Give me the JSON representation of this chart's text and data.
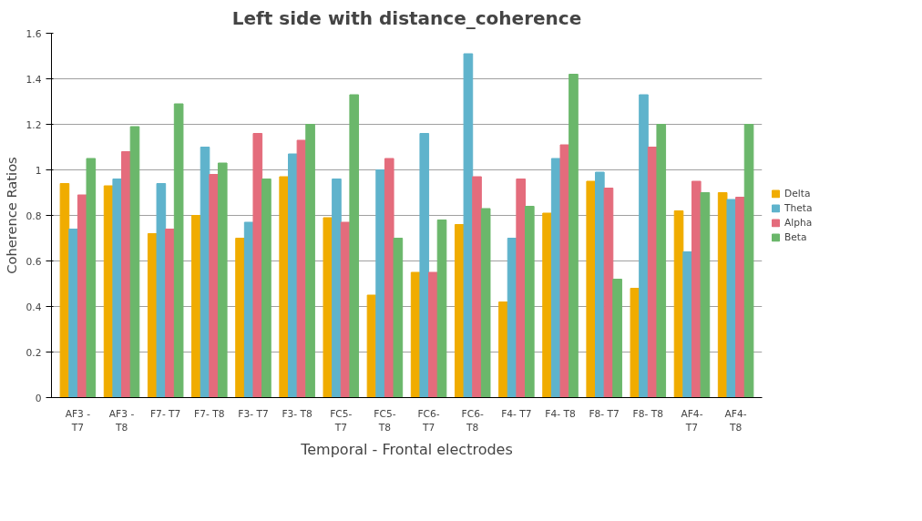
{
  "chart_data": {
    "type": "bar",
    "title": "Left side with distance_coherence",
    "xlabel": "Temporal - Frontal electrodes",
    "ylabel": "Coherence Ratios",
    "categories": [
      "AF3 -\nT7",
      "AF3 -\nT8",
      "F7- T7",
      "F7- T8",
      "F3- T7",
      "F3- T8",
      "FC5-\nT7",
      "FC5-\nT8",
      "FC6-\nT7",
      "FC6-\nT8",
      "F4- T7",
      "F4- T8",
      "F8- T7",
      "F8- T8",
      "AF4-\nT7",
      "AF4-\nT8"
    ],
    "series": [
      {
        "name": "Delta",
        "color": "#f0ac00",
        "values": [
          0.94,
          0.93,
          0.72,
          0.8,
          0.7,
          0.97,
          0.79,
          0.45,
          0.55,
          0.76,
          0.42,
          0.81,
          0.95,
          0.48,
          0.82,
          0.9
        ]
      },
      {
        "name": "Theta",
        "color": "#5fb3cc",
        "values": [
          0.74,
          0.96,
          0.94,
          1.1,
          0.77,
          1.07,
          0.96,
          1.0,
          1.16,
          1.51,
          0.7,
          1.05,
          0.99,
          1.33,
          0.64,
          0.87
        ]
      },
      {
        "name": "Alpha",
        "color": "#e46c7c",
        "values": [
          0.89,
          1.08,
          0.74,
          0.98,
          1.16,
          1.13,
          0.77,
          1.05,
          0.55,
          0.97,
          0.96,
          1.11,
          0.92,
          1.1,
          0.95,
          0.88
        ]
      },
      {
        "name": "Beta",
        "color": "#6bb76b",
        "values": [
          1.05,
          1.19,
          1.29,
          1.03,
          0.96,
          1.2,
          1.33,
          0.7,
          0.78,
          0.83,
          0.84,
          1.42,
          0.52,
          1.2,
          0.9,
          1.2
        ]
      }
    ],
    "ylim": [
      0,
      1.6
    ],
    "yticks": [
      0,
      0.2,
      0.4,
      0.6,
      0.8,
      1,
      1.2,
      1.4,
      1.6
    ],
    "grid": "y",
    "legend": "right"
  }
}
